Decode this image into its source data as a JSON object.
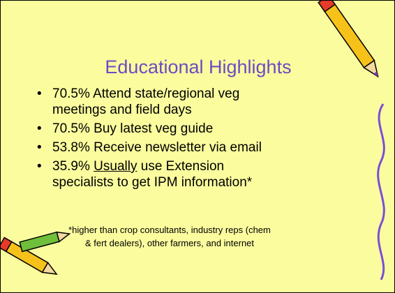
{
  "title": "Educational Highlights",
  "bullets": [
    "70.5% Attend state/regional veg meetings and field days",
    "70.5% Buy latest veg guide",
    "53.8% Receive newsletter via email",
    [
      "35.9% ",
      "Usually",
      " use Extension specialists to get IPM information*"
    ]
  ],
  "footnote": "*higher than crop consultants, industry reps (chem & fert dealers), other farmers, and internet"
}
